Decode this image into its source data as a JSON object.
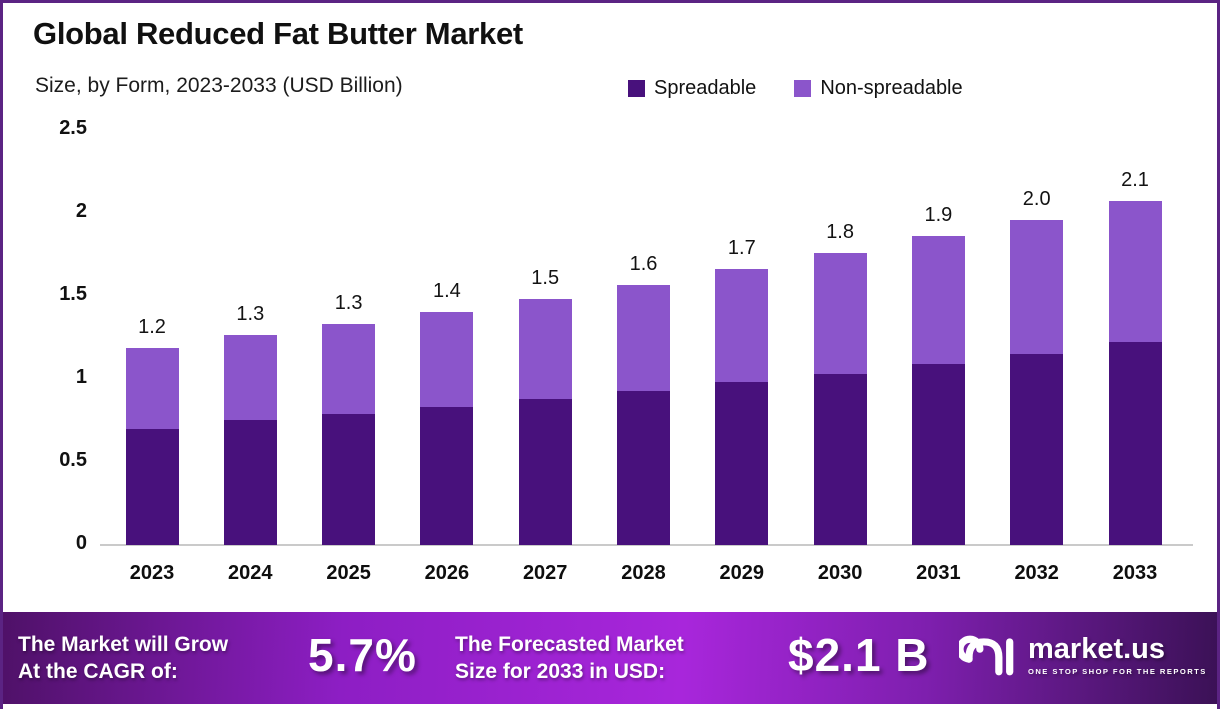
{
  "header": {
    "title": "Global Reduced Fat Butter Market",
    "subtitle": "Size, by Form, 2023-2033 (USD Billion)"
  },
  "legend": [
    {
      "label": "Spreadable",
      "color": "#48117C"
    },
    {
      "label": "Non-spreadable",
      "color": "#8B55CB"
    }
  ],
  "chart_data": {
    "type": "bar",
    "stacked": true,
    "title": "Global Reduced Fat Butter Market",
    "subtitle": "Size, by Form, 2023-2033 (USD Billion)",
    "xlabel": "",
    "ylabel": "USD Billion",
    "categories": [
      "2023",
      "2024",
      "2025",
      "2026",
      "2027",
      "2028",
      "2029",
      "2030",
      "2031",
      "2032",
      "2033"
    ],
    "series": [
      {
        "name": "Spreadable",
        "color": "#48117C",
        "values": [
          0.7,
          0.75,
          0.79,
          0.83,
          0.88,
          0.93,
          0.98,
          1.03,
          1.09,
          1.15,
          1.22
        ]
      },
      {
        "name": "Non-spreadable",
        "color": "#8B55CB",
        "values": [
          0.49,
          0.51,
          0.54,
          0.57,
          0.6,
          0.64,
          0.68,
          0.73,
          0.77,
          0.81,
          0.85
        ]
      }
    ],
    "total_labels": [
      "1.2",
      "1.3",
      "1.3",
      "1.4",
      "1.5",
      "1.6",
      "1.7",
      "1.8",
      "1.9",
      "2.0",
      "2.1"
    ],
    "ylim": [
      0,
      2.5
    ],
    "yticks": [
      {
        "value": 0,
        "label": "0"
      },
      {
        "value": 0.5,
        "label": "0.5"
      },
      {
        "value": 1,
        "label": "1"
      },
      {
        "value": 1.5,
        "label": "1.5"
      },
      {
        "value": 2,
        "label": "2"
      },
      {
        "value": 2.5,
        "label": "2.5"
      }
    ],
    "grid": false,
    "legend_position": "top-right"
  },
  "footer": {
    "cagr_label_line1": "The Market will Grow",
    "cagr_label_line2": "At the CAGR of:",
    "cagr_value": "5.7%",
    "forecast_label_line1": "The Forecasted Market",
    "forecast_label_line2": "Size for 2033 in USD:",
    "forecast_value": "$2.1 B",
    "brand": "market.us",
    "brand_tagline": "ONE STOP SHOP FOR THE REPORTS"
  },
  "colors": {
    "frame_border": "#5B2383",
    "axis_line": "#CACACA",
    "banner_gradient": [
      "#4F1168",
      "#8D1EC4",
      "#A826DB",
      "#7E1FAE",
      "#3B1156"
    ],
    "banner_text": "#FFFFFF"
  }
}
